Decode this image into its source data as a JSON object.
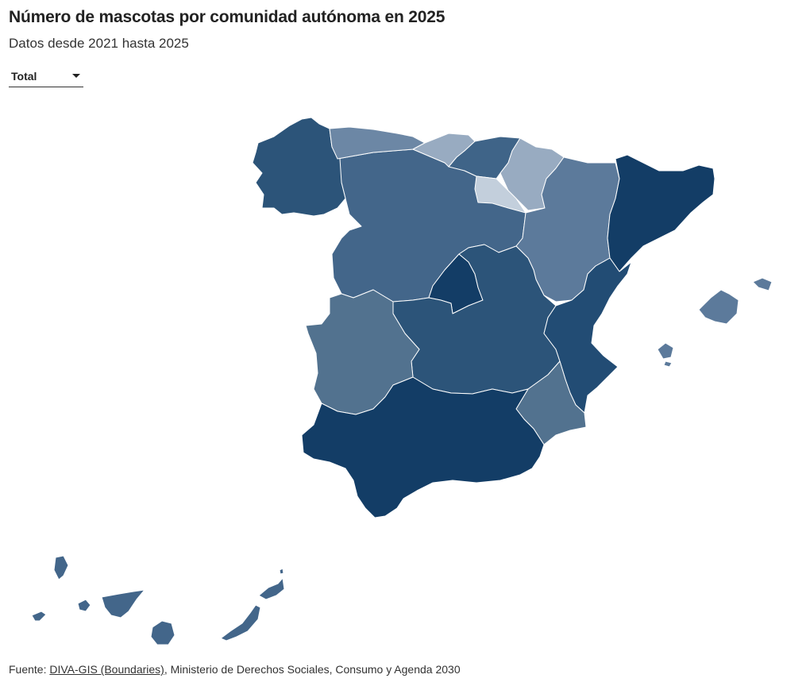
{
  "header": {
    "title": "Número de mascotas por comunidad autónoma en 2025",
    "subtitle": "Datos desde 2021 hasta 2025"
  },
  "filter": {
    "selected": "Total"
  },
  "map": {
    "regions": [
      {
        "id": "galicia",
        "fill": "#2c5479"
      },
      {
        "id": "asturias",
        "fill": "#6c87a5"
      },
      {
        "id": "cantabria",
        "fill": "#98abc1"
      },
      {
        "id": "pais-vasco",
        "fill": "#3f6488"
      },
      {
        "id": "navarra",
        "fill": "#98abc1"
      },
      {
        "id": "la-rioja",
        "fill": "#c3cfdc"
      },
      {
        "id": "aragon",
        "fill": "#5c7a9b"
      },
      {
        "id": "cataluna",
        "fill": "#133d66"
      },
      {
        "id": "castilla-y-leon",
        "fill": "#43668a"
      },
      {
        "id": "madrid",
        "fill": "#133d66"
      },
      {
        "id": "castilla-la-mancha",
        "fill": "#2c5479"
      },
      {
        "id": "extremadura",
        "fill": "#52728f"
      },
      {
        "id": "comunitat-valenciana",
        "fill": "#224c74"
      },
      {
        "id": "murcia",
        "fill": "#52728f"
      },
      {
        "id": "andalucia",
        "fill": "#133d66"
      },
      {
        "id": "illes-balears",
        "fill": "#5c7a9b"
      },
      {
        "id": "canarias",
        "fill": "#43668a"
      }
    ]
  },
  "footer": {
    "prefix": "Fuente: ",
    "link_text": "DIVA-GIS (Boundaries)",
    "suffix": ", Ministerio de Derechos Sociales, Consumo y Agenda 2030"
  }
}
